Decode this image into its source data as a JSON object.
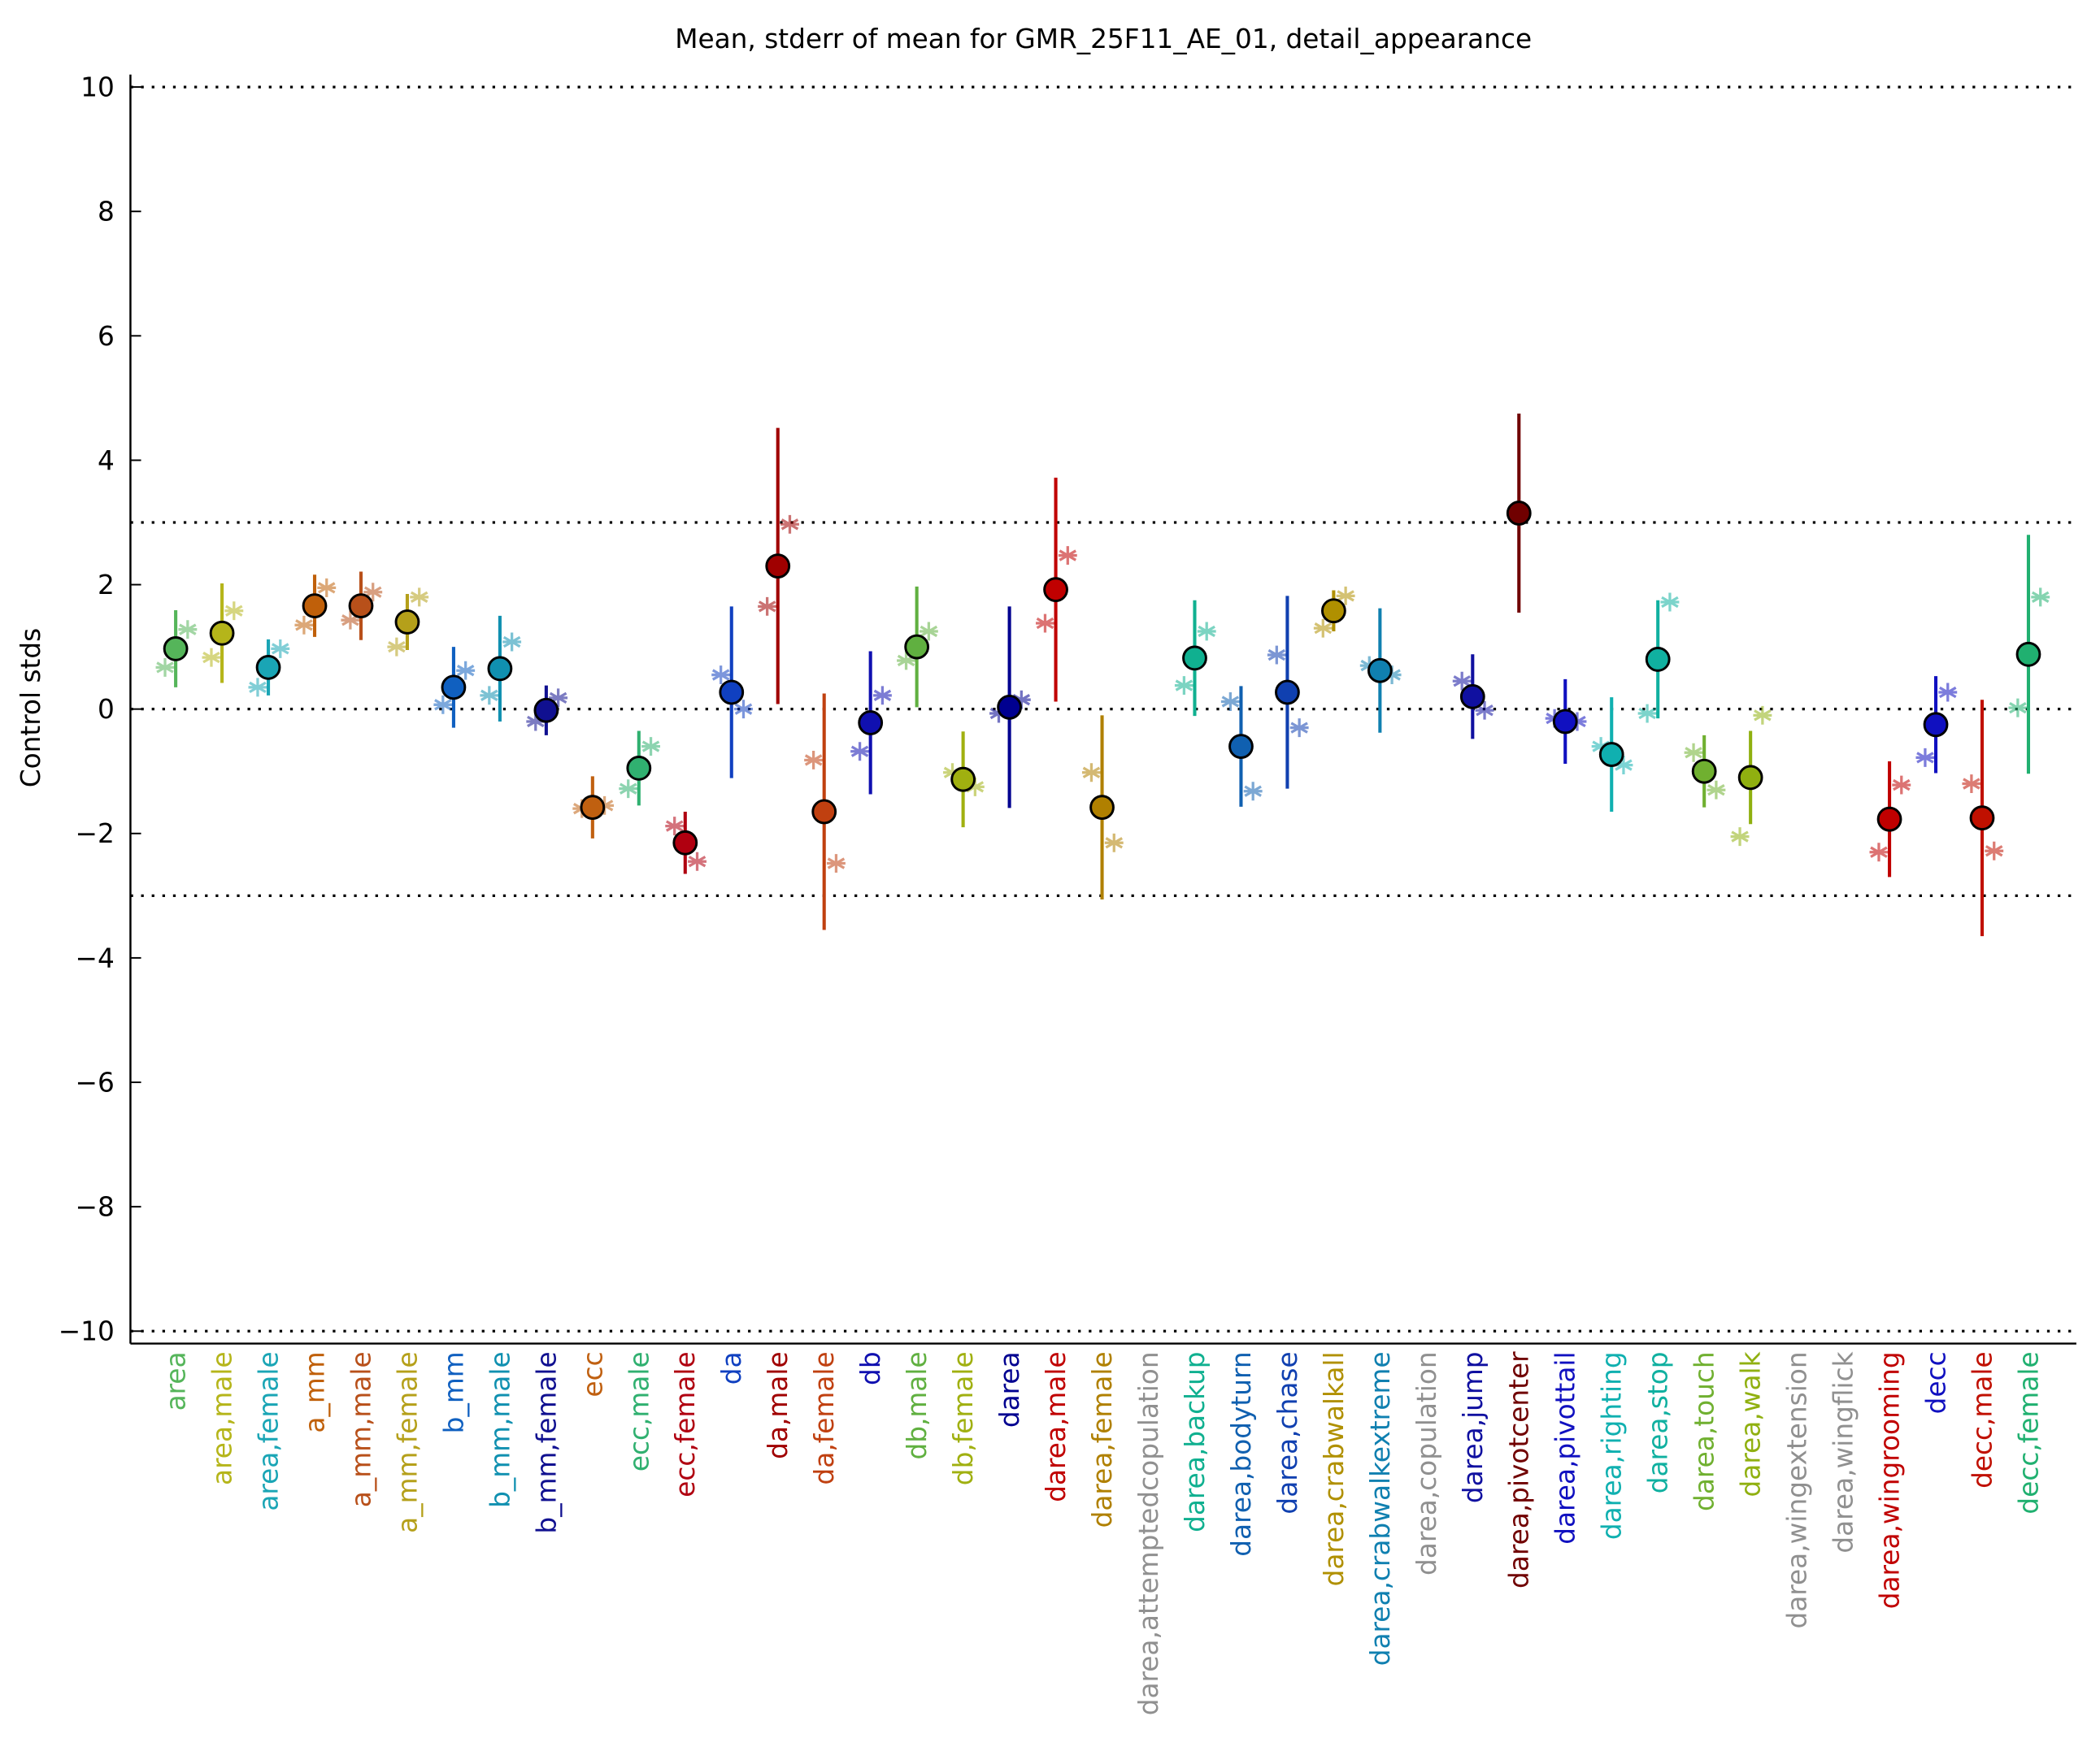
{
  "chart_data": {
    "type": "errorbar",
    "title": "Mean, stderr of mean for GMR_25F11_AE_01, detail_appearance",
    "y_label": "Control stds",
    "categories": [
      "area",
      "area,male",
      "area,female",
      "a_mm",
      "a_mm,male",
      "a_mm,female",
      "b_mm",
      "b_mm,male",
      "b_mm,female",
      "ecc",
      "ecc,male",
      "ecc,female",
      "da",
      "da,male",
      "da,female",
      "db",
      "db,male",
      "db,female",
      "darea",
      "darea,male",
      "darea,female",
      "darea,attemptedcopulation",
      "darea,backup",
      "darea,bodyturn",
      "darea,chase",
      "darea,crabwalkall",
      "darea,crabwalkextreme",
      "darea,copulation",
      "darea,jump",
      "darea,pivotcenter",
      "darea,pivottail",
      "darea,righting",
      "darea,stop",
      "darea,touch",
      "darea,walk",
      "darea,wingextension",
      "darea,wingflick",
      "darea,wingrooming",
      "decc",
      "decc,male",
      "decc,female"
    ],
    "colors": [
      "#55b55a",
      "#b5b51a",
      "#1aa5b5",
      "#c0600a",
      "#b8501a",
      "#b5a01a",
      "#1060c0",
      "#1090b0",
      "#101090",
      "#c06010",
      "#30b070",
      "#b00010",
      "#1040c0",
      "#a00000",
      "#c04010",
      "#1010b0",
      "#60b040",
      "#a0b010",
      "#000090",
      "#c00000",
      "#b08000",
      "#909090",
      "#10b090",
      "#1060b0",
      "#1040b0",
      "#b09000",
      "#1080b0",
      "#909090",
      "#1010a0",
      "#700000",
      "#1010c0",
      "#10b0b0",
      "#10b0a0",
      "#70b030",
      "#90b010",
      "#909090",
      "#909090",
      "#c00000",
      "#1010c0",
      "#c01000",
      "#20b070"
    ],
    "values": [
      0.97,
      1.22,
      0.67,
      1.66,
      1.66,
      1.4,
      0.35,
      0.65,
      -0.02,
      -1.58,
      -0.95,
      -2.15,
      0.27,
      2.3,
      -1.65,
      -0.22,
      1.0,
      -1.13,
      0.03,
      1.92,
      -1.58,
      null,
      0.82,
      -0.6,
      0.27,
      1.58,
      0.62,
      null,
      0.2,
      3.15,
      -0.2,
      -0.73,
      0.8,
      -1.0,
      -1.1,
      null,
      null,
      -1.77,
      -0.25,
      -1.75,
      0.88
    ],
    "errors": [
      0.62,
      0.8,
      0.45,
      0.5,
      0.55,
      0.45,
      0.65,
      0.85,
      0.4,
      0.5,
      0.6,
      0.5,
      1.38,
      2.22,
      1.9,
      1.15,
      0.97,
      0.77,
      1.62,
      1.8,
      1.48,
      null,
      0.93,
      0.97,
      1.55,
      0.33,
      1.0,
      null,
      0.68,
      1.6,
      0.68,
      0.92,
      0.95,
      0.58,
      0.75,
      null,
      null,
      0.93,
      0.78,
      1.9,
      1.92
    ],
    "left_star_values": [
      0.67,
      0.83,
      0.35,
      1.35,
      1.43,
      1.0,
      0.07,
      0.22,
      -0.2,
      -1.6,
      -1.28,
      -1.88,
      0.55,
      1.65,
      -0.82,
      -0.68,
      0.78,
      -1.02,
      -0.07,
      1.38,
      -1.02,
      null,
      0.38,
      0.12,
      0.87,
      1.3,
      0.7,
      null,
      0.45,
      null,
      -0.15,
      -0.6,
      -0.07,
      -0.7,
      -2.05,
      null,
      null,
      -2.3,
      -0.78,
      -1.2,
      0.02
    ],
    "right_star_values": [
      1.28,
      1.58,
      0.97,
      1.95,
      1.88,
      1.8,
      0.62,
      1.08,
      0.18,
      -1.55,
      -0.6,
      -2.45,
      0.0,
      2.97,
      -2.48,
      0.22,
      1.25,
      -1.25,
      0.15,
      2.47,
      -2.15,
      null,
      1.25,
      -1.32,
      -0.3,
      1.82,
      0.55,
      null,
      -0.02,
      null,
      -0.2,
      -0.9,
      1.72,
      -1.3,
      -0.1,
      null,
      null,
      -1.22,
      0.27,
      -2.28,
      1.8
    ],
    "reference_lines": [
      -10,
      -3,
      0,
      3,
      10
    ],
    "ylim": [
      -10.2,
      10.2
    ],
    "yticks": [
      {
        "value": -10,
        "label": "−10"
      },
      {
        "value": -8,
        "label": "−8"
      },
      {
        "value": -6,
        "label": "−6"
      },
      {
        "value": -4,
        "label": "−4"
      },
      {
        "value": -2,
        "label": "−2"
      },
      0,
      2,
      4,
      6,
      8,
      10
    ]
  }
}
